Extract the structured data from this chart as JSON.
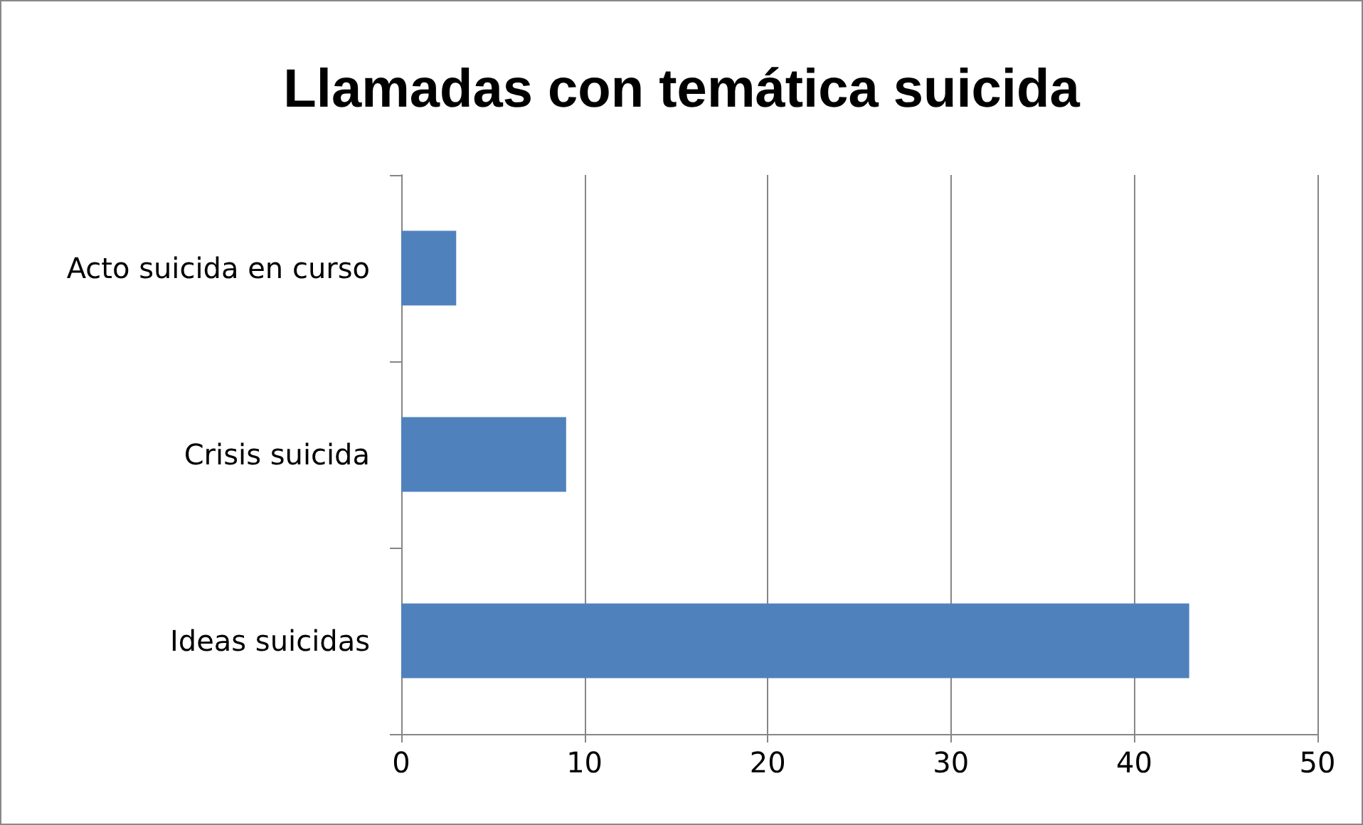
{
  "chart_data": {
    "type": "bar",
    "orientation": "horizontal",
    "title": "Llamadas con temática suicida",
    "categories": [
      "Acto suicida en curso",
      "Crisis suicida",
      "Ideas suicidas"
    ],
    "values": [
      3,
      9,
      43
    ],
    "color": "#4f81bd",
    "xlim": [
      0,
      50
    ],
    "xticks": [
      0,
      10,
      20,
      30,
      40,
      50
    ],
    "grid": "x"
  }
}
